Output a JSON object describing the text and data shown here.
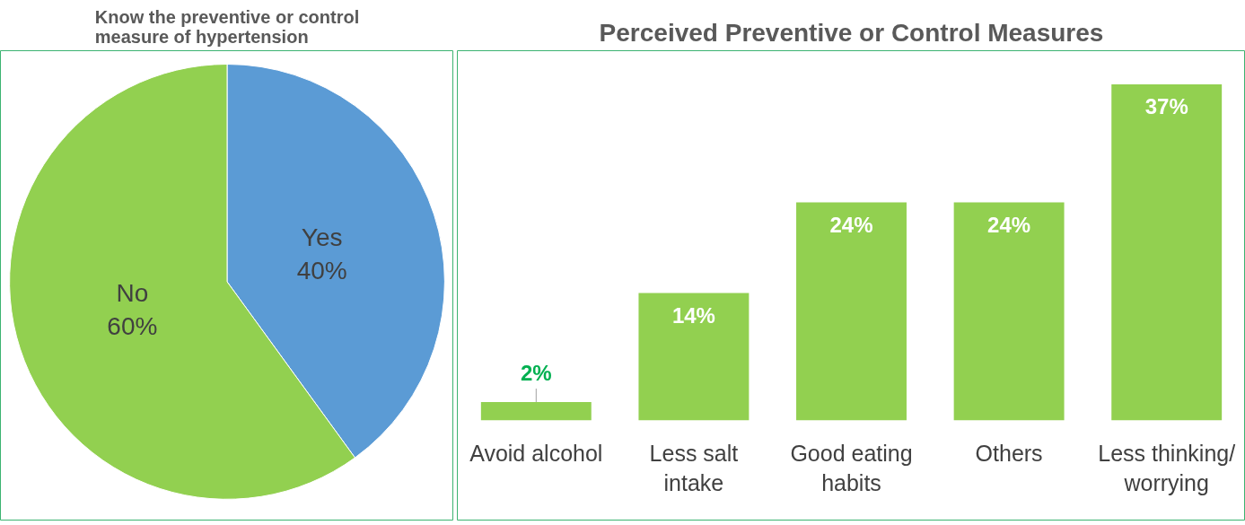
{
  "chart_data": [
    {
      "type": "pie",
      "title": "Know the preventive or control measure of hypertension",
      "categories": [
        "Yes",
        "No"
      ],
      "values": [
        40,
        60
      ],
      "value_labels": [
        "40%",
        "60%"
      ],
      "colors": [
        "#5b9bd5",
        "#92d050"
      ]
    },
    {
      "type": "bar",
      "title": "Perceived Preventive or Control Measures",
      "categories": [
        "Avoid alcohol",
        "Less salt intake",
        "Good eating habits",
        "Others",
        "Less thinking/ worrying"
      ],
      "values": [
        2,
        14,
        24,
        24,
        37
      ],
      "value_labels": [
        "2%",
        "14%",
        "24%",
        "24%",
        "37%"
      ],
      "color": "#92d050"
    }
  ]
}
